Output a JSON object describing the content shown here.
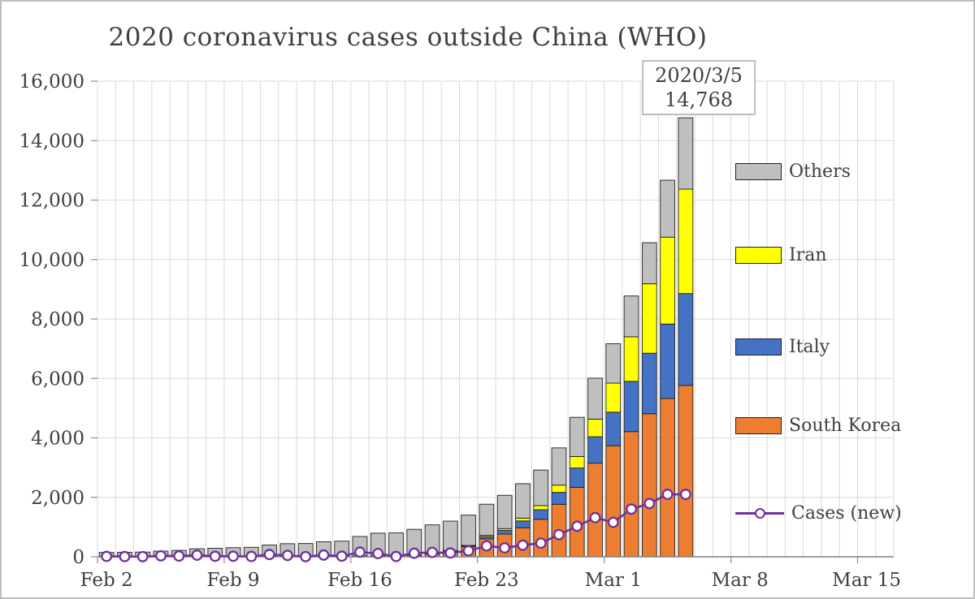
{
  "chart_data": {
    "type": "bar",
    "subtype": "stacked-bars-with-line-overlay",
    "title": "2020 coronavirus cases outside China (WHO)",
    "xlabel": "",
    "ylabel": "",
    "grid": true,
    "categories": [
      "Feb 2",
      "Feb 3",
      "Feb 4",
      "Feb 5",
      "Feb 6",
      "Feb 7",
      "Feb 8",
      "Feb 9",
      "Feb 10",
      "Feb 11",
      "Feb 12",
      "Feb 13",
      "Feb 14",
      "Feb 15",
      "Feb 16",
      "Feb 17",
      "Feb 18",
      "Feb 19",
      "Feb 20",
      "Feb 21",
      "Feb 22",
      "Feb 23",
      "Feb 24",
      "Feb 25",
      "Feb 26",
      "Feb 27",
      "Feb 28",
      "Feb 29",
      "Mar 1",
      "Mar 2",
      "Mar 3",
      "Mar 4",
      "Mar 5"
    ],
    "series": [
      {
        "name": "South Korea",
        "color": "#ED7D31",
        "values": [
          15,
          15,
          16,
          18,
          23,
          24,
          24,
          25,
          27,
          28,
          28,
          28,
          28,
          28,
          29,
          30,
          31,
          51,
          104,
          204,
          346,
          602,
          763,
          977,
          1261,
          1766,
          2337,
          3150,
          3736,
          4212,
          4812,
          5328,
          5766
        ]
      },
      {
        "name": "Italy",
        "color": "#4472C4",
        "values": [
          2,
          2,
          2,
          2,
          2,
          3,
          3,
          3,
          3,
          3,
          3,
          3,
          3,
          3,
          3,
          3,
          3,
          3,
          3,
          3,
          9,
          76,
          124,
          229,
          322,
          400,
          650,
          888,
          1128,
          1689,
          2036,
          2502,
          3089
        ]
      },
      {
        "name": "Iran",
        "color": "#FFFF00",
        "values": [
          0,
          0,
          0,
          0,
          0,
          0,
          0,
          0,
          0,
          0,
          0,
          0,
          0,
          0,
          0,
          0,
          0,
          0,
          2,
          5,
          28,
          43,
          61,
          95,
          139,
          245,
          388,
          593,
          978,
          1501,
          2336,
          2922,
          3513
        ]
      },
      {
        "name": "Others",
        "color": "#BFBFBF",
        "values": [
          129,
          136,
          141,
          171,
          191,
          243,
          261,
          279,
          289,
          364,
          410,
          416,
          474,
          495,
          651,
          761,
          770,
          870,
          964,
          988,
          1019,
          1048,
          1121,
          1158,
          1196,
          1253,
          1316,
          1378,
          1327,
          1372,
          1382,
          1916,
          2400
        ]
      }
    ],
    "totals": [
      146,
      153,
      159,
      191,
      216,
      270,
      288,
      307,
      319,
      395,
      441,
      447,
      505,
      526,
      683,
      794,
      804,
      924,
      1073,
      1200,
      1402,
      1769,
      2069,
      2459,
      2918,
      3664,
      4691,
      6009,
      7169,
      8774,
      10566,
      12668,
      14768
    ],
    "line_series": {
      "name": "Cases (new)",
      "color": "#7030A0",
      "values": [
        14,
        7,
        6,
        32,
        25,
        54,
        18,
        19,
        12,
        76,
        46,
        6,
        58,
        21,
        157,
        111,
        10,
        120,
        149,
        127,
        202,
        367,
        300,
        390,
        459,
        746,
        1027,
        1318,
        1160,
        1605,
        1792,
        2102,
        2100
      ]
    },
    "annotation": {
      "line1": "2020/3/5",
      "line2": "14,768"
    },
    "y_axis": {
      "min": 0,
      "max": 16000,
      "step": 2000,
      "tick_labels": [
        "0",
        "2,000",
        "4,000",
        "6,000",
        "8,000",
        "10,000",
        "12,000",
        "14,000",
        "16,000"
      ]
    },
    "x_axis": {
      "tick_labels": [
        "Feb 2",
        "Feb 9",
        "Feb 16",
        "Feb 23",
        "Mar 1",
        "Mar 8",
        "Mar 15"
      ],
      "tick_slot_indices": [
        0,
        7,
        14,
        21,
        28,
        35,
        42
      ],
      "total_slots": 44
    },
    "legend": {
      "position": "right-inside",
      "items": [
        {
          "label": "Others",
          "color": "#BFBFBF",
          "type": "box"
        },
        {
          "label": "Iran",
          "color": "#FFFF00",
          "type": "box"
        },
        {
          "label": "Italy",
          "color": "#4472C4",
          "type": "box"
        },
        {
          "label": "South Korea",
          "color": "#ED7D31",
          "type": "box"
        },
        {
          "label": "Cases (new)",
          "color": "#7030A0",
          "type": "line-marker"
        }
      ]
    }
  }
}
